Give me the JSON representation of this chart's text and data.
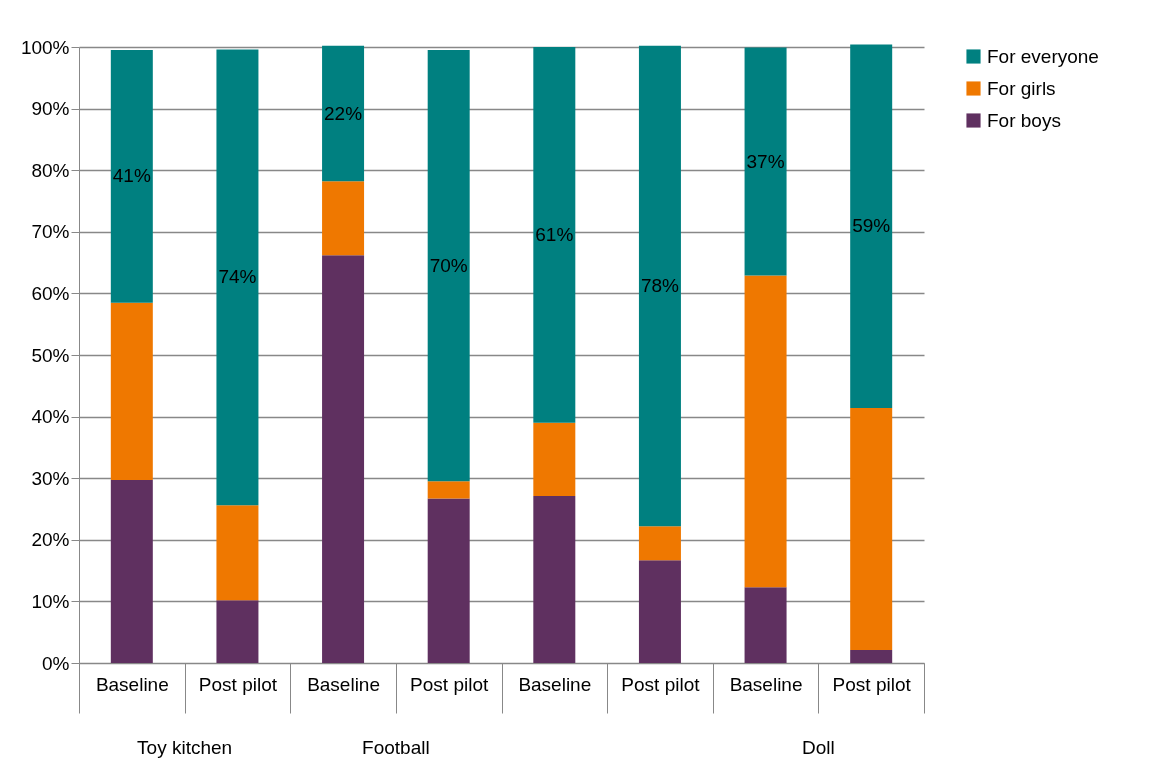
{
  "chart_data": {
    "type": "bar",
    "stacked": true,
    "categories": [
      "Baseline",
      "Post pilot",
      "Baseline",
      "Post pilot",
      "Baseline",
      "Post pilot",
      "Baseline",
      "Post pilot"
    ],
    "series": [
      {
        "name": "For boys",
        "color": "#5f3060",
        "values": [
          29.7,
          10.2,
          66.2,
          26.7,
          27.1,
          16.7,
          12.3,
          2.1
        ]
      },
      {
        "name": "For girls",
        "color": "#ef7800",
        "values": [
          28.8,
          15.4,
          12.0,
          2.8,
          11.9,
          5.5,
          50.6,
          39.3
        ]
      },
      {
        "name": "For everyone",
        "color": "#008080",
        "values": [
          41,
          74,
          22,
          70,
          61,
          78,
          37,
          59
        ],
        "value_labels": [
          "41%",
          "74%",
          "22%",
          "70%",
          "61%",
          "78%",
          "37%",
          "59%"
        ]
      }
    ],
    "annotations": [
      "Toy kitchen",
      "Football",
      null,
      "Doll"
    ],
    "ylim": [
      0,
      100
    ],
    "yticks": [
      {
        "value": 0,
        "label": "0%"
      },
      {
        "value": 10,
        "label": "10%"
      },
      {
        "value": 20,
        "label": "20%"
      },
      {
        "value": 30,
        "label": "30%"
      },
      {
        "value": 40,
        "label": "40%"
      },
      {
        "value": 50,
        "label": "50%"
      },
      {
        "value": 60,
        "label": "60%"
      },
      {
        "value": 70,
        "label": "70%"
      },
      {
        "value": 80,
        "label": "80%"
      },
      {
        "value": 90,
        "label": "90%"
      },
      {
        "value": 100,
        "label": "100%"
      }
    ],
    "grid": "y",
    "legend": "right"
  }
}
